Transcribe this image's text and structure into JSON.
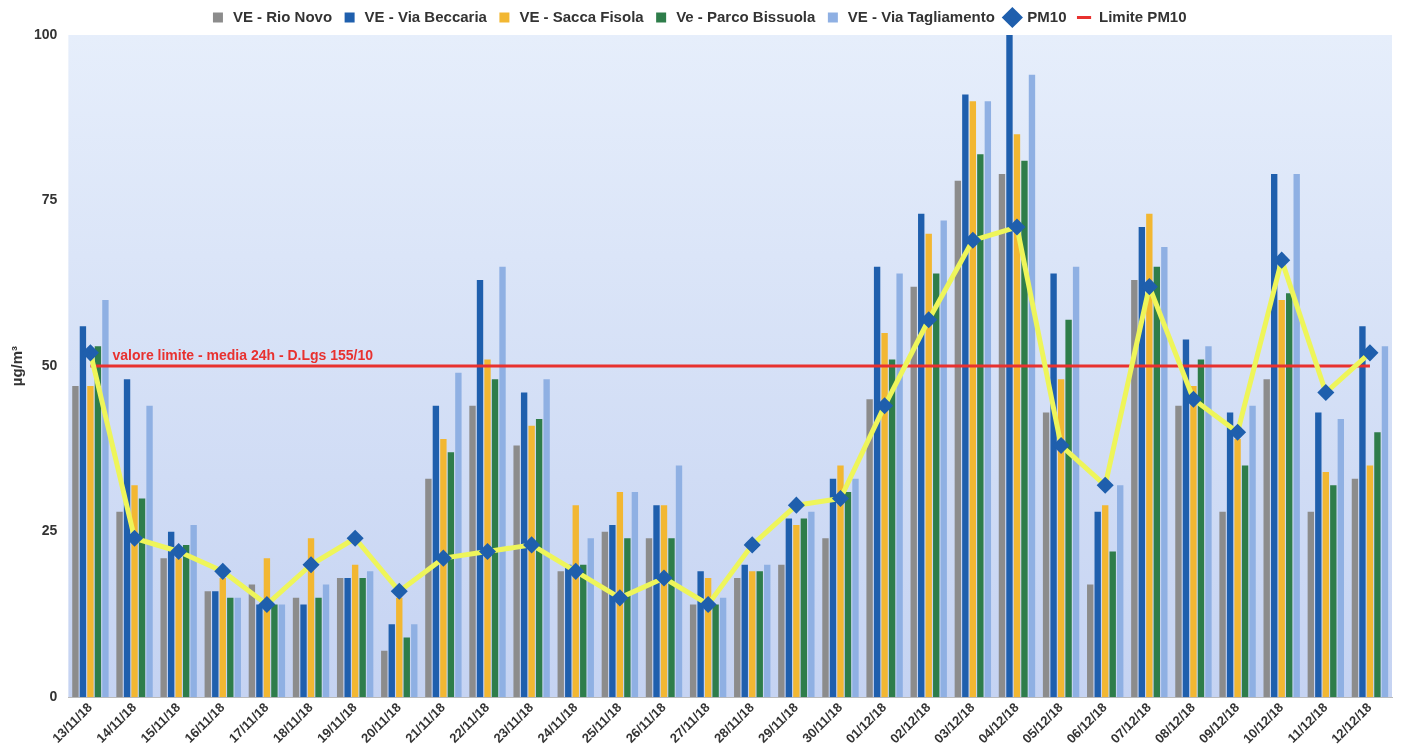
{
  "chart_data": {
    "type": "bar",
    "ylabel": "µg/m³",
    "categories": [
      "13/11/18",
      "14/11/18",
      "15/11/18",
      "16/11/18",
      "17/11/18",
      "18/11/18",
      "19/11/18",
      "20/11/18",
      "21/11/18",
      "22/11/18",
      "23/11/18",
      "24/11/18",
      "25/11/18",
      "26/11/18",
      "27/11/18",
      "28/11/18",
      "29/11/18",
      "30/11/18",
      "01/12/18",
      "02/12/18",
      "03/12/18",
      "04/12/18",
      "05/12/18",
      "06/12/18",
      "07/12/18",
      "08/12/18",
      "09/12/18",
      "10/12/18",
      "11/12/18",
      "12/12/18"
    ],
    "series": [
      {
        "name": "VE - Rio Novo",
        "color": "#8c8c8c",
        "values": [
          47,
          28,
          21,
          16,
          17,
          15,
          18,
          7,
          33,
          44,
          38,
          19,
          25,
          24,
          14,
          18,
          20,
          24,
          45,
          62,
          78,
          79,
          43,
          17,
          63,
          44,
          28,
          48,
          28,
          33
        ]
      },
      {
        "name": "VE - Via Beccaria",
        "color": "#1f5fad",
        "values": [
          56,
          48,
          25,
          16,
          14,
          14,
          18,
          11,
          44,
          63,
          46,
          20,
          26,
          29,
          19,
          20,
          27,
          33,
          65,
          73,
          91,
          100,
          64,
          28,
          71,
          54,
          43,
          79,
          43,
          56
        ]
      },
      {
        "name": "VE - Sacca Fisola",
        "color": "#f2b732",
        "values": [
          47,
          32,
          21,
          18,
          21,
          24,
          20,
          15,
          39,
          51,
          41,
          29,
          31,
          29,
          18,
          19,
          26,
          35,
          55,
          70,
          90,
          85,
          48,
          29,
          73,
          47,
          39,
          60,
          34,
          35
        ]
      },
      {
        "name": "Ve - Parco Bissuola",
        "color": "#2e7d4a",
        "values": [
          53,
          30,
          23,
          15,
          14,
          15,
          18,
          9,
          37,
          48,
          42,
          20,
          24,
          24,
          14,
          19,
          27,
          31,
          51,
          64,
          82,
          81,
          57,
          22,
          65,
          51,
          35,
          61,
          32,
          40
        ]
      },
      {
        "name": "VE - Via Tagliamento",
        "color": "#8fb0e3",
        "values": [
          60,
          44,
          26,
          15,
          14,
          17,
          19,
          11,
          49,
          65,
          48,
          24,
          31,
          35,
          15,
          20,
          28,
          33,
          64,
          72,
          90,
          94,
          65,
          32,
          68,
          53,
          44,
          79,
          42,
          53
        ]
      },
      {
        "name": "PM10",
        "type": "line",
        "color": "#eef55a",
        "marker": "diamond",
        "values": [
          52,
          24,
          22,
          19,
          14,
          20,
          24,
          16,
          21,
          22,
          23,
          19,
          15,
          18,
          14,
          23,
          29,
          30,
          44,
          57,
          69,
          71,
          38,
          32,
          62,
          45,
          40,
          66,
          46,
          52
        ]
      },
      {
        "name": "Limite PM10",
        "type": "line",
        "color": "#e8312f",
        "marker": "none",
        "values": [
          50,
          50,
          50,
          50,
          50,
          50,
          50,
          50,
          50,
          50,
          50,
          50,
          50,
          50,
          50,
          50,
          50,
          50,
          50,
          50,
          50,
          50,
          50,
          50,
          50,
          50,
          50,
          50,
          50,
          50
        ]
      }
    ],
    "annotations": [
      {
        "text": "valore limite - media 24h - D.Lgs 155/10",
        "x": "13/11/18",
        "y": 50
      }
    ],
    "ylim": [
      0,
      100
    ],
    "yticks": [
      0,
      25,
      50,
      75,
      100
    ],
    "grid": false,
    "legend": "top"
  }
}
